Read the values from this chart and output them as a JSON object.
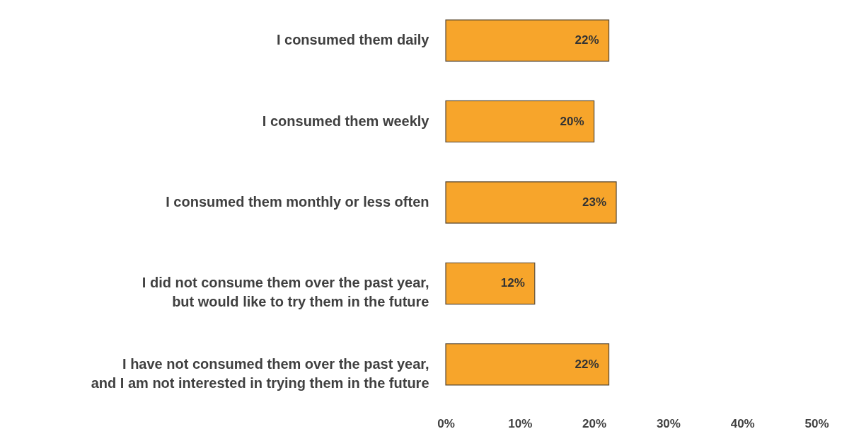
{
  "chart_data": {
    "type": "bar",
    "orientation": "horizontal",
    "categories": [
      "I consumed them daily",
      "I consumed them weekly",
      "I consumed them monthly or less often",
      "I did not consume them over the past year,\nbut would like to try them in the future",
      "I have not consumed them over the past year,\nand I am not interested in trying them in the future"
    ],
    "values": [
      22,
      20,
      23,
      12,
      22
    ],
    "value_labels": [
      "22%",
      "20%",
      "23%",
      "12%",
      "22%"
    ],
    "color": "#f7a52b",
    "xlim": [
      0,
      50
    ],
    "xticks": [
      {
        "value": 0,
        "label": "0%"
      },
      {
        "value": 10,
        "label": "10%"
      },
      {
        "value": 20,
        "label": "20%"
      },
      {
        "value": 30,
        "label": "30%"
      },
      {
        "value": 40,
        "label": "40%"
      },
      {
        "value": 50,
        "label": "50%"
      }
    ],
    "grid": false
  }
}
